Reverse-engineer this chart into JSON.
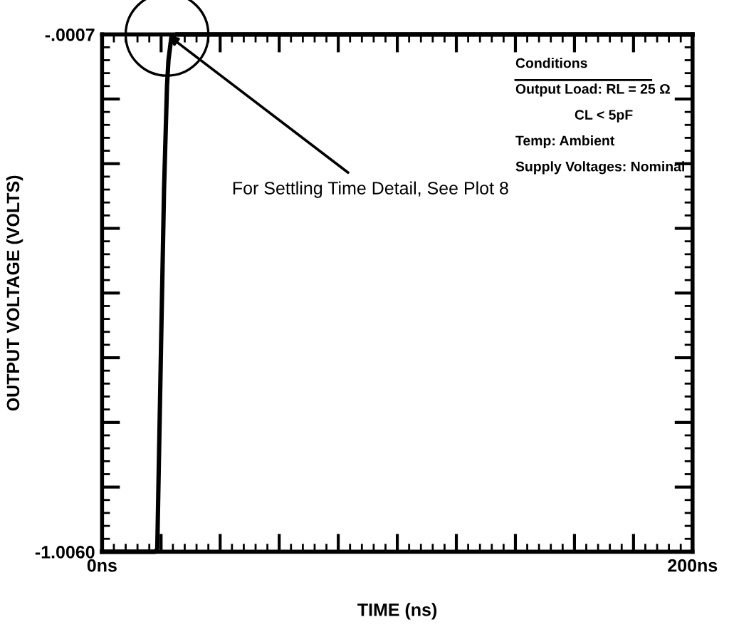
{
  "chart_data": {
    "type": "line",
    "xlabel": "TIME (ns)",
    "ylabel": "OUTPUT VOLTAGE (VOLTS)",
    "x": [
      0,
      18,
      18.7,
      20,
      21,
      22,
      22.5,
      23.5,
      25,
      200
    ],
    "series": [
      {
        "color": "#000000",
        "values": [
          -1.006,
          -1.006,
          -1.0,
          -0.6,
          -0.3,
          -0.1,
          -0.05,
          -0.005,
          -0.0007,
          -0.0007
        ]
      }
    ],
    "xlim": [
      0,
      200
    ],
    "xticks": [
      {
        "value": 0,
        "label": "0ns"
      },
      {
        "value": 20,
        "label": null
      },
      {
        "value": 40,
        "label": null
      },
      {
        "value": 60,
        "label": null
      },
      {
        "value": 80,
        "label": null
      },
      {
        "value": 100,
        "label": null
      },
      {
        "value": 120,
        "label": null
      },
      {
        "value": 140,
        "label": null
      },
      {
        "value": 160,
        "label": null
      },
      {
        "value": 180,
        "label": null
      },
      {
        "value": 200,
        "label": "200ns"
      }
    ],
    "ylim": [
      -1.006,
      -0.0007
    ],
    "yticks": [
      {
        "value": -1.006,
        "label": "-1.0060"
      },
      {
        "value": -0.8803,
        "label": null
      },
      {
        "value": -0.7546,
        "label": null
      },
      {
        "value": -0.6289,
        "label": null
      },
      {
        "value": -0.5032,
        "label": null
      },
      {
        "value": -0.3775,
        "label": null
      },
      {
        "value": -0.2518,
        "label": null
      },
      {
        "value": -0.1261,
        "label": null
      },
      {
        "value": -0.0007,
        "label": "-.0007"
      }
    ],
    "grid": false,
    "legend": false,
    "marker": "none",
    "line_style": "solid",
    "annotations": [
      {
        "text": "For Settling Time Detail, See Plot 8",
        "x": 22,
        "y": -0.0007
      },
      "Conditions",
      "Output Load: RL = 25 Ω",
      "CL < 5pF",
      "Temp: Ambient",
      "Supply Voltages: Nominal"
    ]
  }
}
